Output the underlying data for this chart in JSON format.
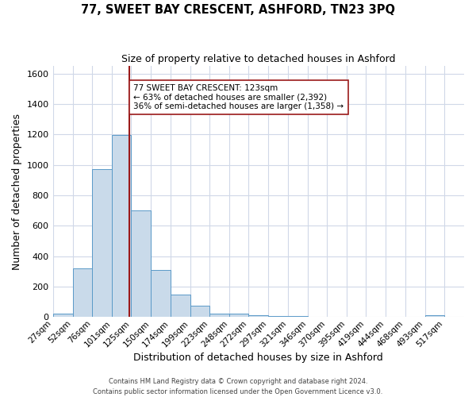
{
  "title": "77, SWEET BAY CRESCENT, ASHFORD, TN23 3PQ",
  "subtitle": "Size of property relative to detached houses in Ashford",
  "xlabel": "Distribution of detached houses by size in Ashford",
  "ylabel": "Number of detached properties",
  "bar_color": "#c9daea",
  "bar_edge_color": "#5a9ac8",
  "background_color": "#ffffff",
  "grid_color": "#d0d8e8",
  "bins": [
    27,
    52,
    76,
    101,
    125,
    150,
    174,
    199,
    223,
    248,
    272,
    297,
    321,
    346,
    370,
    395,
    419,
    444,
    468,
    493,
    517,
    542
  ],
  "bin_labels": [
    "27sqm",
    "52sqm",
    "76sqm",
    "101sqm",
    "125sqm",
    "150sqm",
    "174sqm",
    "199sqm",
    "223sqm",
    "248sqm",
    "272sqm",
    "297sqm",
    "321sqm",
    "346sqm",
    "370sqm",
    "395sqm",
    "419sqm",
    "444sqm",
    "468sqm",
    "493sqm",
    "517sqm"
  ],
  "counts": [
    25,
    320,
    970,
    1195,
    700,
    310,
    150,
    75,
    25,
    20,
    10,
    8,
    5,
    3,
    2,
    1,
    1,
    0,
    0,
    10,
    0
  ],
  "property_size": 123,
  "vline_color": "#9b1a1a",
  "annotation_line1": "77 SWEET BAY CRESCENT: 123sqm",
  "annotation_line2": "← 63% of detached houses are smaller (2,392)",
  "annotation_line3": "36% of semi-detached houses are larger (1,358) →",
  "annotation_box_color": "#ffffff",
  "annotation_box_edge": "#9b1a1a",
  "ylim": [
    0,
    1650
  ],
  "yticks": [
    0,
    200,
    400,
    600,
    800,
    1000,
    1200,
    1400,
    1600
  ],
  "footer_line1": "Contains HM Land Registry data © Crown copyright and database right 2024.",
  "footer_line2": "Contains public sector information licensed under the Open Government Licence v3.0."
}
